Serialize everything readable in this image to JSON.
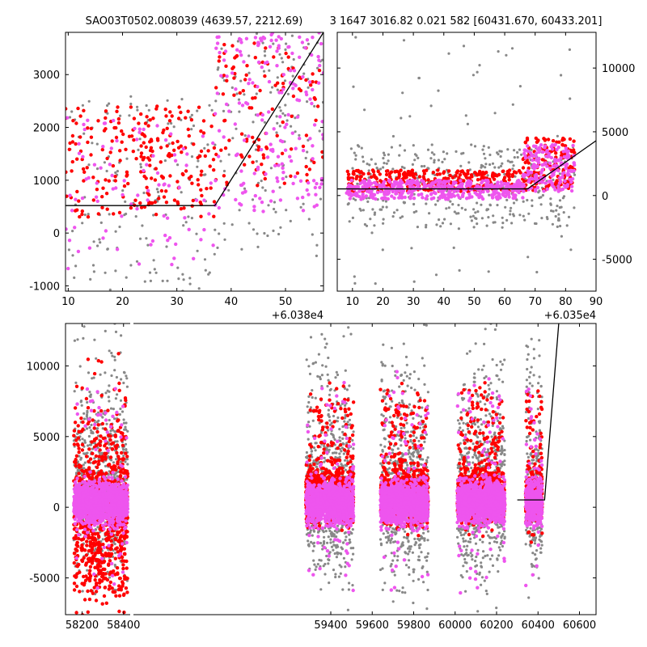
{
  "figure": {
    "title_left": "SAO03T0502.008039 (4639.57, 2212.69)",
    "title_right": "3 1647 3016.82 0.021 582 [60431.670, 60433.201]"
  },
  "colors": {
    "series_gray": "#888888",
    "series_red": "#ff0000",
    "series_magenta": "#ee55ee",
    "model_line": "#000000"
  },
  "chart_data": [
    {
      "type": "scatter",
      "panel": "top-left",
      "x_offset_label": "+6.038e4",
      "xlim": [
        9.5,
        57
      ],
      "ylim": [
        -1100,
        3800
      ],
      "xticks": [
        10,
        20,
        30,
        40,
        50
      ],
      "yticks": [
        -1000,
        0,
        1000,
        2000,
        3000
      ],
      "y_axis_side": "left",
      "model_line": {
        "x": [
          9.5,
          37.0,
          57.0
        ],
        "y": [
          520,
          520,
          3800
        ]
      },
      "series": [
        {
          "color": "gray",
          "description_regions": [
            [
              9.5,
              37,
              -1100,
              2600,
              150
            ],
            [
              37,
              57,
              -500,
              3800,
              140
            ]
          ]
        },
        {
          "color": "red",
          "description_regions": [
            [
              9.5,
              37,
              300,
              2400,
              230
            ],
            [
              37,
              57,
              900,
              3600,
              120
            ]
          ]
        },
        {
          "color": "magenta",
          "description_regions": [
            [
              9.5,
              37,
              -700,
              2200,
              90
            ],
            [
              37,
              57,
              400,
              3800,
              190
            ]
          ]
        }
      ]
    },
    {
      "type": "scatter",
      "panel": "top-right",
      "x_offset_label": "+6.035e4",
      "xlim": [
        5,
        90
      ],
      "ylim": [
        -7500,
        12800
      ],
      "xticks": [
        10,
        20,
        30,
        40,
        50,
        60,
        70,
        80,
        90
      ],
      "yticks": [
        -5000,
        0,
        5000,
        10000
      ],
      "y_axis_side": "right",
      "model_line": {
        "x": [
          5,
          67.5,
          90
        ],
        "y": [
          520,
          520,
          4300
        ]
      },
      "series": [
        {
          "color": "gray",
          "description_regions": [
            [
              8,
              83,
              -2500,
              4000,
              380
            ],
            [
              8,
              83,
              -7000,
              12500,
              70
            ]
          ]
        },
        {
          "color": "red",
          "description_regions": [
            [
              8,
              66,
              300,
              2000,
              340
            ],
            [
              66,
              83,
              400,
              4500,
              160
            ]
          ]
        },
        {
          "color": "magenta",
          "description_regions": [
            [
              8,
              66,
              -300,
              1200,
              420
            ],
            [
              66,
              83,
              300,
              4000,
              180
            ]
          ]
        }
      ]
    },
    {
      "type": "scatter",
      "panel": "bottom",
      "xlim": [
        58120,
        60680
      ],
      "ylim": [
        -7600,
        13000
      ],
      "xticks": [
        58200,
        58400,
        59400,
        59600,
        59800,
        60000,
        60200,
        60400,
        60600
      ],
      "yticks": [
        -5000,
        0,
        5000,
        10000
      ],
      "y_axis_side": "left",
      "model_line": {
        "x": [
          60300,
          60431.7,
          60500
        ],
        "y": [
          520,
          520,
          13000
        ]
      },
      "seasons": [
        [
          58160,
          58420
        ],
        [
          58340,
          58420
        ],
        [
          59280,
          59510
        ],
        [
          59640,
          59870
        ],
        [
          60010,
          60240
        ],
        [
          60340,
          60420
        ]
      ],
      "series": [
        {
          "color": "gray"
        },
        {
          "color": "red"
        },
        {
          "color": "magenta"
        }
      ]
    }
  ]
}
